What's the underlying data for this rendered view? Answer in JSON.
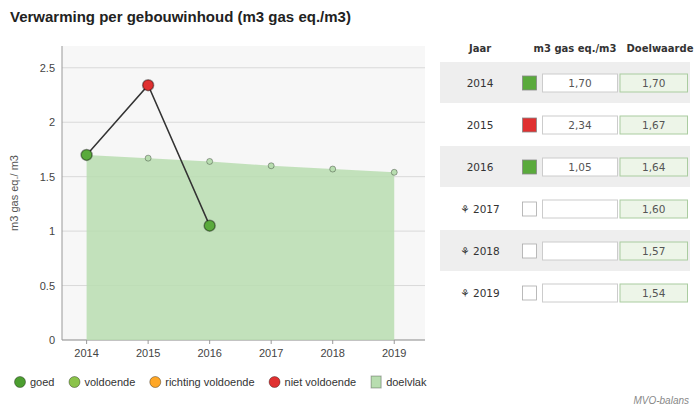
{
  "chart_data": [
    {
      "type": "line",
      "title": "Verwarming per gebouwinhoud (m3 gas eq./m3)",
      "ylabel": "m3 gas eq./ m3",
      "x": [
        2014,
        2015,
        2016,
        2017,
        2018,
        2019
      ],
      "xlim": [
        2013.6,
        2019.5
      ],
      "xticks": [
        2014,
        2015,
        2016,
        2017,
        2018,
        2019
      ],
      "ylim": [
        0,
        2.7
      ],
      "yticks": [
        0,
        0.5,
        1,
        1.5,
        2,
        2.5
      ],
      "grid": true,
      "series": [
        {
          "name": "doelvlak",
          "type": "area",
          "color": "#b8ddb0",
          "marker": "circle",
          "values": [
            1.7,
            1.67,
            1.64,
            1.6,
            1.57,
            1.54
          ]
        },
        {
          "type": "line",
          "color": "#333333",
          "marker": "circle",
          "colors": [
            "#5aaa3c",
            "#e03030",
            "#5aaa3c",
            null,
            null,
            null
          ],
          "values": [
            1.7,
            2.34,
            1.05,
            null,
            null,
            null
          ]
        }
      ],
      "legend": "bottom",
      "legend_items": [
        {
          "name": "goed",
          "color": "#4c9e30",
          "marker": "circle"
        },
        {
          "name": "voldoende",
          "color": "#8bc34a",
          "marker": "circle"
        },
        {
          "name": "richting voldoende",
          "color": "#ffa726",
          "marker": "circle"
        },
        {
          "name": "niet voldoende",
          "color": "#e03030",
          "marker": "circle"
        },
        {
          "name": "doelvlak",
          "color": "#b8ddb0",
          "marker": "square"
        }
      ],
      "annotations": [
        "MVO-balans"
      ]
    },
    {
      "type": "table",
      "columns": [
        "Jaar",
        "m3 gas eq./m3",
        "Doelwaarde"
      ],
      "rows": [
        [
          "2014",
          "1,70",
          "1,70"
        ],
        [
          "2015",
          "2,34",
          "1,67"
        ],
        [
          "2016",
          "1,05",
          "1,64"
        ],
        [
          "⚘ 2017",
          null,
          "1,60"
        ],
        [
          "⚘ 2018",
          null,
          "1,57"
        ],
        [
          "⚘ 2019",
          null,
          "1,54"
        ]
      ],
      "colors": [
        "#5aaa3c",
        "#e03030",
        "#5aaa3c",
        null,
        null,
        null
      ]
    }
  ]
}
